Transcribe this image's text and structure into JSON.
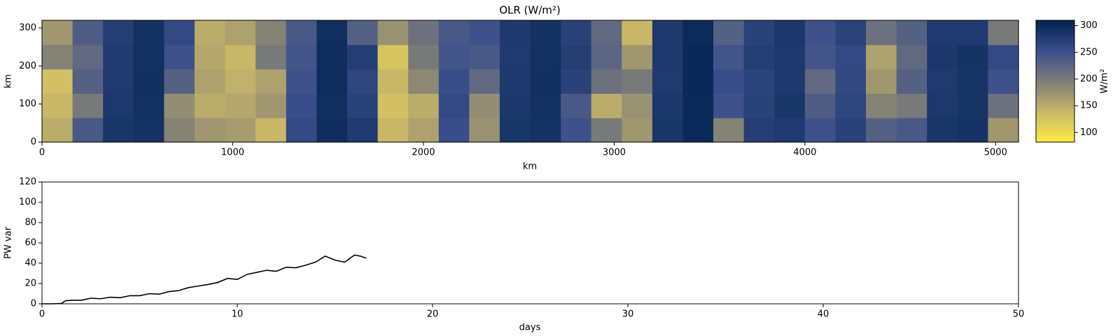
{
  "chart_data": [
    {
      "type": "heatmap",
      "title": "OLR (W/m²)",
      "xlabel": "km",
      "ylabel": "km",
      "xlim": [
        0,
        5120
      ],
      "ylim": [
        0,
        320
      ],
      "xticks": [
        0,
        1000,
        2000,
        3000,
        4000,
        5000
      ],
      "yticks": [
        0,
        100,
        200,
        300
      ],
      "z": [
        [
          150,
          240,
          285,
          290,
          190,
          170,
          165,
          140,
          260,
          295,
          280,
          140,
          160,
          255,
          175,
          285,
          290,
          250,
          200,
          170,
          285,
          300,
          190,
          275,
          280,
          250,
          270,
          230,
          240,
          285,
          288,
          170
        ],
        [
          140,
          200,
          282,
          292,
          180,
          150,
          155,
          170,
          255,
          294,
          270,
          130,
          150,
          260,
          180,
          283,
          292,
          240,
          150,
          175,
          283,
          300,
          250,
          270,
          284,
          235,
          265,
          190,
          200,
          282,
          286,
          210
        ],
        [
          130,
          230,
          280,
          293,
          230,
          160,
          145,
          160,
          250,
          296,
          265,
          140,
          185,
          255,
          220,
          281,
          293,
          270,
          210,
          200,
          280,
          302,
          255,
          268,
          281,
          220,
          262,
          170,
          230,
          280,
          287,
          250
        ],
        [
          190,
          220,
          278,
          292,
          250,
          155,
          140,
          200,
          245,
          295,
          275,
          125,
          200,
          245,
          240,
          280,
          292,
          275,
          225,
          170,
          281,
          301,
          245,
          275,
          282,
          245,
          260,
          160,
          220,
          283,
          288,
          260
        ],
        [
          170,
          235,
          275,
          291,
          260,
          150,
          160,
          190,
          240,
          294,
          230,
          175,
          210,
          240,
          250,
          281,
          291,
          270,
          220,
          140,
          282,
          299,
          230,
          270,
          283,
          250,
          268,
          210,
          230,
          280,
          280,
          200
        ]
      ],
      "zlim": [
        82,
        310
      ],
      "colorbar_label": "W/m²",
      "colorbar_ticks": [
        100,
        150,
        200,
        250,
        300
      ],
      "colormap": [
        "#ffe945",
        "#c9b867",
        "#7d7c78",
        "#3a4f8b",
        "#00224e"
      ]
    },
    {
      "type": "line",
      "xlabel": "days",
      "ylabel": "PW var",
      "color": "#000000",
      "xlim": [
        0,
        50
      ],
      "ylim": [
        0,
        120
      ],
      "xticks": [
        0,
        10,
        20,
        30,
        40,
        50
      ],
      "yticks": [
        0,
        20,
        40,
        60,
        80,
        100,
        120
      ],
      "x": [
        0,
        0.5,
        1,
        1.2,
        1.5,
        2,
        2.5,
        3,
        3.5,
        4,
        4.5,
        5,
        5.5,
        6,
        6.5,
        7,
        7.5,
        8,
        8.5,
        9,
        9.5,
        10,
        10.5,
        11,
        11.5,
        12,
        12.5,
        13,
        13.5,
        14,
        14.5,
        15,
        15.5,
        16,
        16.3,
        16.6
      ],
      "values": [
        0,
        0,
        0.3,
        3,
        3.5,
        3.5,
        5.5,
        5,
        6.5,
        6,
        8,
        8,
        10,
        9.5,
        12,
        13,
        16,
        17.5,
        19,
        21,
        25,
        24,
        29,
        31,
        33,
        32,
        36,
        35.5,
        38,
        41,
        47,
        43,
        41,
        48,
        47,
        45
      ]
    }
  ]
}
